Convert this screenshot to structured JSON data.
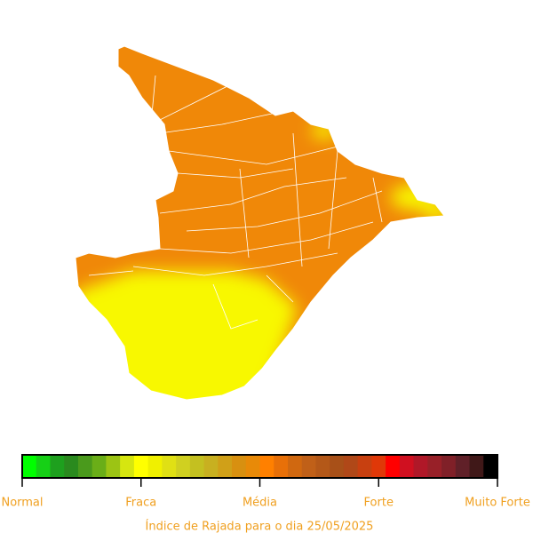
{
  "legend": {
    "colors": [
      "#00ff00",
      "#16d016",
      "#1e a01e",
      "#2a8a1e",
      "#4a9a1c",
      "#6aae18",
      "#9cc414",
      "#d6e610",
      "#ffff00",
      "#f0f000",
      "#e0e014",
      "#d0d020",
      "#c4c020",
      "#c8b020",
      "#d0a018",
      "#d89010",
      "#e88a08",
      "#ff8000",
      "#e87008",
      "#d06810",
      "#c06018",
      "#b45818",
      "#a85018",
      "#b04818",
      "#c84010",
      "#e03808",
      "#ff0000",
      "#d01020",
      "#b01828",
      "#982028",
      "#802028",
      "#602028",
      "#401818",
      "#000000"
    ],
    "labels": [
      "Normal",
      "Fraca",
      "Média",
      "Forte",
      "Muito Forte"
    ],
    "title": "Índice de Rajada para o dia 25/05/2025"
  }
}
